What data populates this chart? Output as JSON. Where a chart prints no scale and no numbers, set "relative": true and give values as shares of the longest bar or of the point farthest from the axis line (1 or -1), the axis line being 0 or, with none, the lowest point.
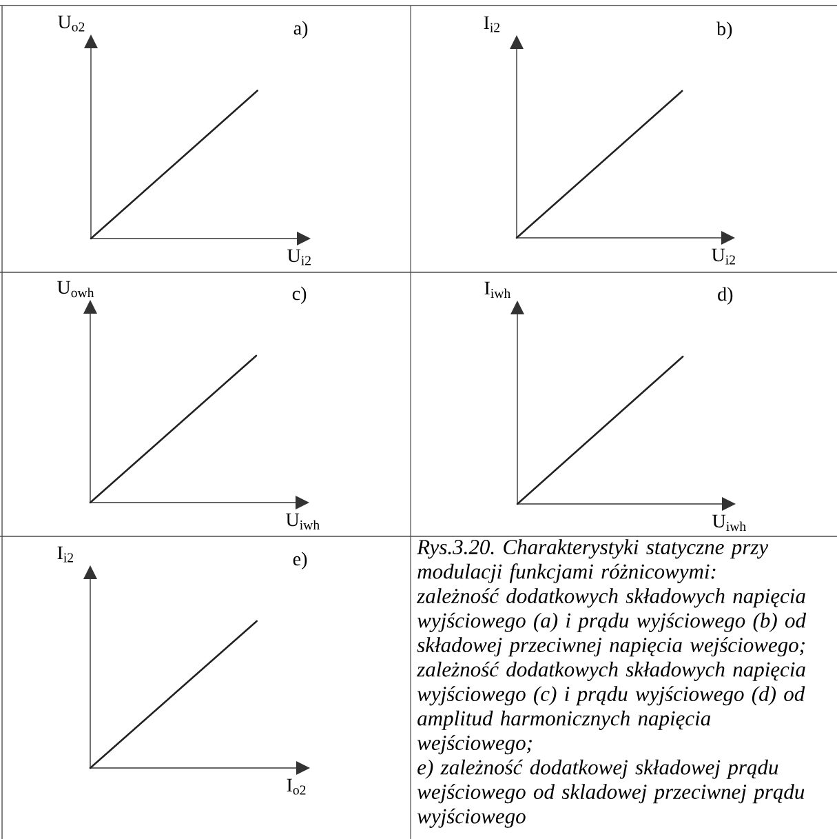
{
  "chart_data": [
    {
      "type": "line",
      "title": "a)",
      "xlabel": "U$_{i2}$",
      "ylabel": "U$_{o2}$",
      "categories": [
        null,
        null
      ],
      "relative": true,
      "series": [
        {
          "color": "#222222",
          "values": [
            0,
            1
          ]
        }
      ]
    },
    {
      "type": "line",
      "title": "b)",
      "xlabel": "U$_{i2}$",
      "ylabel": "I$_{i2}$",
      "categories": [
        null,
        null
      ],
      "relative": true,
      "series": [
        {
          "color": "#222222",
          "values": [
            0,
            1
          ]
        }
      ]
    },
    {
      "type": "line",
      "title": "c)",
      "xlabel": "U$_{iwh}$",
      "ylabel": "U$_{owh}$",
      "categories": [
        null,
        null
      ],
      "relative": true,
      "series": [
        {
          "color": "#222222",
          "values": [
            0,
            1
          ]
        }
      ]
    },
    {
      "type": "line",
      "title": "d)",
      "xlabel": "U$_{iwh}$",
      "ylabel": "I$_{iwh}$",
      "categories": [
        null,
        null
      ],
      "relative": true,
      "series": [
        {
          "color": "#222222",
          "values": [
            0,
            1
          ]
        }
      ]
    },
    {
      "type": "line",
      "title": "e)",
      "xlabel": "I$_{o2}$",
      "ylabel": "I$_{i2}$",
      "categories": [
        null,
        null
      ],
      "relative": true,
      "series": [
        {
          "color": "#222222",
          "values": [
            0,
            1
          ]
        }
      ]
    },
    {
      "type": "other",
      "annotations": [
        "Rys.3.20. Charakterystyki statyczne przy modulacji funkcjami różnicowymi:",
        "zależność dodatkowych składowych napięcia wyjściowego (a) i prądu wyjściowego (b) od składowej przeciwnej napięcia wejściowego;",
        "zależność dodatkowych składowych napięcia wyjściowego (c) i prądu wyjściowego (d) od amplitud harmonicznych napięcia wejściowego;",
        "e) zależność dodatkowej składowej prądu wejściowego od skladowej przeciwnej prądu wyjściowego"
      ]
    }
  ]
}
